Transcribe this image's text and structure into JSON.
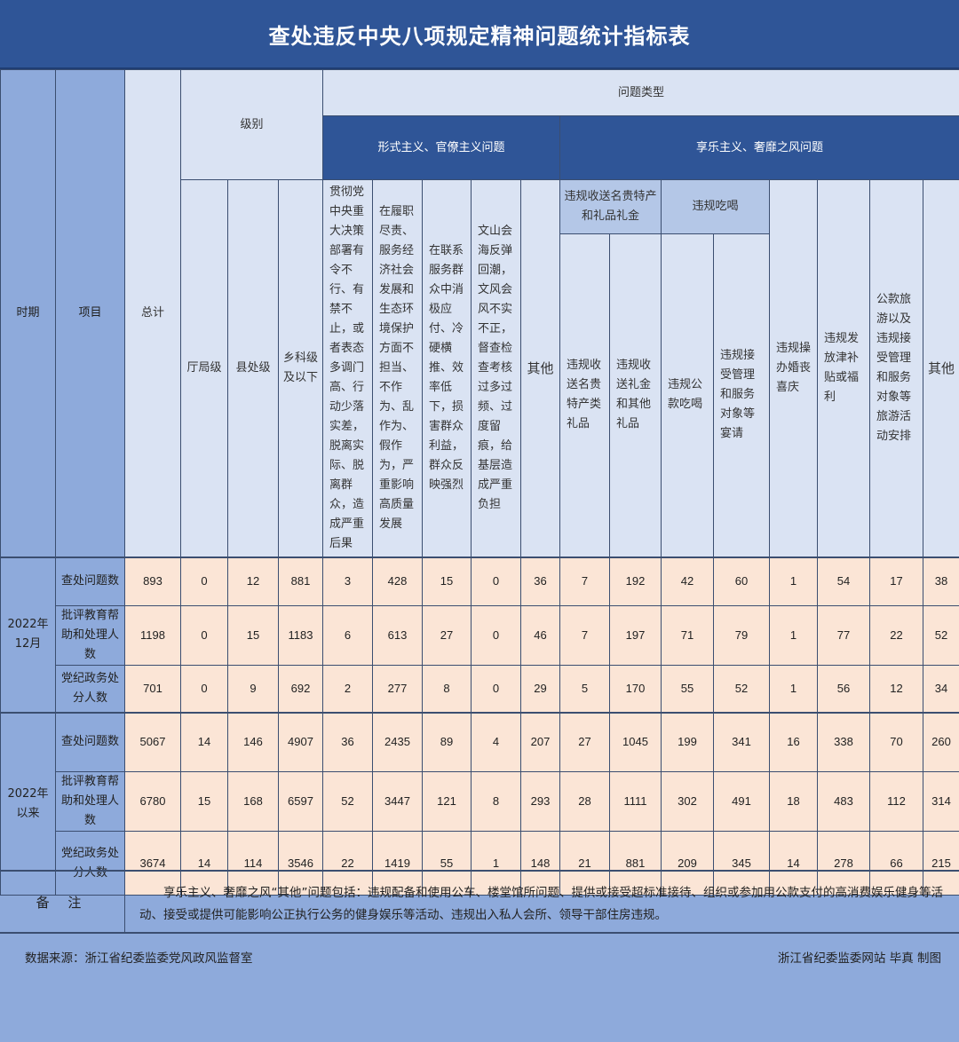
{
  "title": "查处违反中央八项规定精神问题统计指标表",
  "header": {
    "period": "时期",
    "item": "项目",
    "total": "总计",
    "level": "级别",
    "levels": [
      "厅局级",
      "县处级",
      "乡科级及以下"
    ],
    "problem_type": "问题类型",
    "formalism": {
      "label": "形式主义、官僚主义问题",
      "columns": [
        "贯彻党中央重大决策部署有令不行、有禁不止，或者表态多调门高、行动少落实差，脱离实际、脱离群众，造成严重后果",
        "在履职尽责、服务经济社会发展和生态环境保护方面不担当、不作为、乱作为、假作为，严重影响高质量发展",
        "在联系服务群众中消极应付、冷硬横推、效率低下，损害群众利益，群众反映强烈",
        "文山会海反弹回潮，文风会风不实不正，督查检查考核过多过频、过度留痕，给基层造成严重负担",
        "其他"
      ]
    },
    "hedonism": {
      "label": "享乐主义、奢靡之风问题",
      "groups": [
        {
          "label": "违规收送名贵特产和礼品礼金",
          "columns": [
            "违规收送名贵特产类礼品",
            "违规收送礼金和其他礼品"
          ]
        },
        {
          "label": "违规吃喝",
          "columns": [
            "违规公款吃喝",
            "违规接受管理和服务对象等宴请"
          ]
        }
      ],
      "columns": [
        "违规操办婚丧喜庆",
        "违规发放津补贴或福利",
        "公款旅游以及违规接受管理和服务对象等旅游活动安排",
        "其他"
      ]
    }
  },
  "sections": [
    {
      "period": "2022年12月",
      "rows": [
        {
          "item": "查处问题数",
          "values": [
            893,
            0,
            12,
            881,
            3,
            428,
            15,
            0,
            36,
            7,
            192,
            42,
            60,
            1,
            54,
            17,
            38
          ]
        },
        {
          "item": "批评教育帮助和处理人数",
          "values": [
            1198,
            0,
            15,
            1183,
            6,
            613,
            27,
            0,
            46,
            7,
            197,
            71,
            79,
            1,
            77,
            22,
            52
          ]
        },
        {
          "item": "党纪政务处分人数",
          "values": [
            701,
            0,
            9,
            692,
            2,
            277,
            8,
            0,
            29,
            5,
            170,
            55,
            52,
            1,
            56,
            12,
            34
          ]
        }
      ]
    },
    {
      "period": "2022年以来",
      "rows": [
        {
          "item": "查处问题数",
          "values": [
            5067,
            14,
            146,
            4907,
            36,
            2435,
            89,
            4,
            207,
            27,
            1045,
            199,
            341,
            16,
            338,
            70,
            260
          ]
        },
        {
          "item": "批评教育帮助和处理人数",
          "values": [
            6780,
            15,
            168,
            6597,
            52,
            3447,
            121,
            8,
            293,
            28,
            1111,
            302,
            491,
            18,
            483,
            112,
            314
          ]
        },
        {
          "item": "党纪政务处分人数",
          "values": [
            3674,
            14,
            114,
            3546,
            22,
            1419,
            55,
            1,
            148,
            21,
            881,
            209,
            345,
            14,
            278,
            66,
            215
          ]
        }
      ]
    }
  ],
  "remarks": {
    "label": "备 注",
    "text": "享乐主义、奢靡之风“其他”问题包括：违规配备和使用公车、楼堂馆所问题、提供或接受超标准接待、组织或参加用公款支付的高消费娱乐健身等活动、接受或提供可能影响公正执行公务的健身娱乐等活动、违规出入私人会所、领导干部住房违规。"
  },
  "source": "数据来源：浙江省纪委监委党风政风监督室",
  "credit": "浙江省纪委监委网站  毕真 制图",
  "colors": {
    "title_bar": "#2f5597",
    "header": "#dae3f3",
    "side": "#8eaadb",
    "data_cell": "#fbe5d6"
  }
}
